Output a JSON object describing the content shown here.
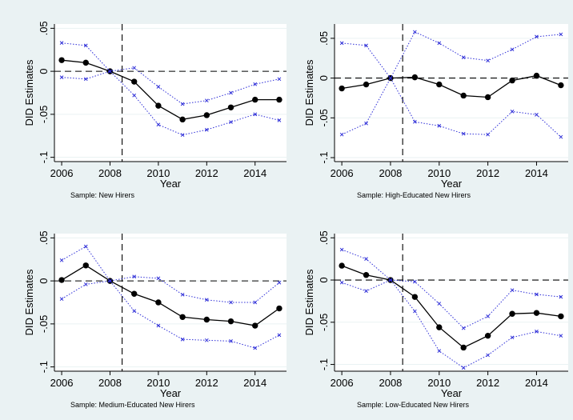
{
  "colors": {
    "background": "#eaf2f3",
    "plot": "#ffffff",
    "estimate": "#000000",
    "ci": "#2f2fd8"
  },
  "chart_data": [
    {
      "type": "line",
      "caption": "Sample: New Hirers",
      "xlabel": "Year",
      "ylabel": "DID Estimates",
      "x": [
        2006,
        2007,
        2008,
        2009,
        2010,
        2011,
        2012,
        2013,
        2014,
        2015
      ],
      "xticks": [
        "2006",
        "2008",
        "2010",
        "2012",
        "2014"
      ],
      "yticks": [
        ".05",
        "0",
        "-.05",
        "-.1"
      ],
      "ylim": [
        -0.105,
        0.055
      ],
      "reference": {
        "hline": 0,
        "vline": 2008.5
      },
      "series": [
        {
          "values": [
            0.013,
            0.01,
            0.0,
            -0.012,
            -0.04,
            -0.056,
            -0.051,
            -0.042,
            -0.033,
            -0.033
          ]
        },
        {
          "values": [
            0.033,
            0.03,
            0.0,
            0.004,
            -0.018,
            -0.038,
            -0.034,
            -0.025,
            -0.015,
            -0.009
          ]
        },
        {
          "values": [
            -0.007,
            -0.009,
            0.0,
            -0.028,
            -0.062,
            -0.074,
            -0.068,
            -0.059,
            -0.05,
            -0.057
          ]
        }
      ]
    },
    {
      "type": "line",
      "caption": "Sample: High-Educated New Hirers",
      "xlabel": "Year",
      "ylabel": "DID Estimates",
      "x": [
        2006,
        2007,
        2008,
        2009,
        2010,
        2011,
        2012,
        2013,
        2014,
        2015
      ],
      "xticks": [
        "2006",
        "2008",
        "2010",
        "2012",
        "2014"
      ],
      "yticks": [
        ".05",
        "0",
        "-.05",
        "-.1"
      ],
      "ylim": [
        -0.105,
        0.068
      ],
      "reference": {
        "hline": 0,
        "vline": 2008.5
      },
      "series": [
        {
          "values": [
            -0.013,
            -0.008,
            0.0,
            0.001,
            -0.008,
            -0.022,
            -0.024,
            -0.003,
            0.003,
            -0.009
          ]
        },
        {
          "values": [
            0.044,
            0.041,
            0.0,
            0.058,
            0.044,
            0.026,
            0.022,
            0.036,
            0.052,
            0.055
          ]
        },
        {
          "values": [
            -0.071,
            -0.057,
            0.0,
            -0.055,
            -0.06,
            -0.07,
            -0.071,
            -0.042,
            -0.046,
            -0.074
          ]
        }
      ]
    },
    {
      "type": "line",
      "caption": "Sample: Medium-Educated New Hirers",
      "xlabel": "Year",
      "ylabel": "DID Estimates",
      "x": [
        2006,
        2007,
        2008,
        2009,
        2010,
        2011,
        2012,
        2013,
        2014,
        2015
      ],
      "xticks": [
        "2006",
        "2008",
        "2010",
        "2012",
        "2014"
      ],
      "yticks": [
        ".05",
        "0",
        "-.05",
        "-.1"
      ],
      "ylim": [
        -0.105,
        0.055
      ],
      "reference": {
        "hline": 0,
        "vline": 2008.5
      },
      "series": [
        {
          "values": [
            0.001,
            0.018,
            0.0,
            -0.015,
            -0.025,
            -0.042,
            -0.045,
            -0.047,
            -0.052,
            -0.032
          ]
        },
        {
          "values": [
            0.024,
            0.04,
            0.0,
            0.005,
            0.003,
            -0.016,
            -0.022,
            -0.025,
            -0.025,
            -0.002
          ]
        },
        {
          "values": [
            -0.021,
            -0.004,
            0.0,
            -0.035,
            -0.052,
            -0.068,
            -0.069,
            -0.07,
            -0.078,
            -0.063
          ]
        }
      ]
    },
    {
      "type": "line",
      "caption": "Sample: Low-Educated New Hirers",
      "xlabel": "Year",
      "ylabel": "DID Estimates",
      "x": [
        2006,
        2007,
        2008,
        2009,
        2010,
        2011,
        2012,
        2013,
        2014,
        2015
      ],
      "xticks": [
        "2006",
        "2008",
        "2010",
        "2012",
        "2014"
      ],
      "yticks": [
        ".05",
        "0",
        "-.05",
        "-.1"
      ],
      "ylim": [
        -0.108,
        0.055
      ],
      "reference": {
        "hline": 0,
        "vline": 2008.5
      },
      "series": [
        {
          "values": [
            0.017,
            0.006,
            0.0,
            -0.02,
            -0.056,
            -0.08,
            -0.066,
            -0.04,
            -0.039,
            -0.043
          ]
        },
        {
          "values": [
            0.036,
            0.025,
            0.0,
            -0.002,
            -0.028,
            -0.057,
            -0.043,
            -0.012,
            -0.017,
            -0.02
          ]
        },
        {
          "values": [
            -0.003,
            -0.013,
            0.0,
            -0.037,
            -0.084,
            -0.104,
            -0.089,
            -0.068,
            -0.061,
            -0.066
          ]
        }
      ]
    }
  ]
}
